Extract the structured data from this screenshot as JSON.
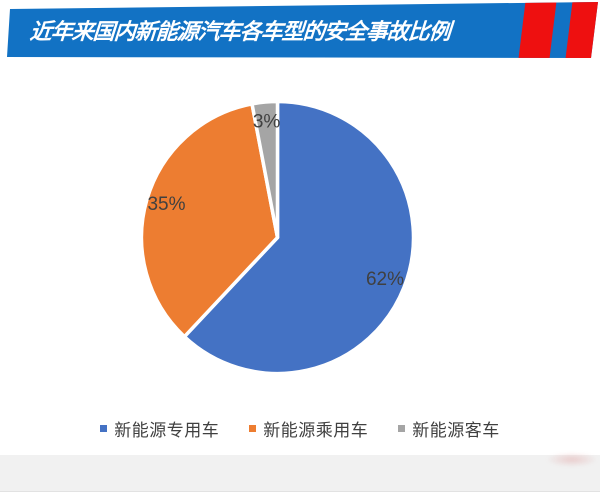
{
  "banner": {
    "title": "近年来国内新能源汽车各车型的安全事故比例",
    "bg_color": "#1272c4",
    "stripe_color": "#ee1010",
    "text_color": "#ffffff"
  },
  "chart_data": {
    "type": "pie",
    "title": "近年来国内新能源汽车各车型的安全事故比例",
    "categories": [
      "新能源专用车",
      "新能源乘用车",
      "新能源客车"
    ],
    "values": [
      62,
      35,
      3
    ],
    "data_labels": [
      "62%",
      "35%",
      "3%"
    ],
    "colors": [
      "#4472c4",
      "#ed7d31",
      "#a5a5a5"
    ],
    "unit": "%",
    "start_angle_deg": 0,
    "direction": "clockwise",
    "slice_border_color": "#ffffff",
    "label_color": "#404040",
    "legend_position": "bottom"
  }
}
